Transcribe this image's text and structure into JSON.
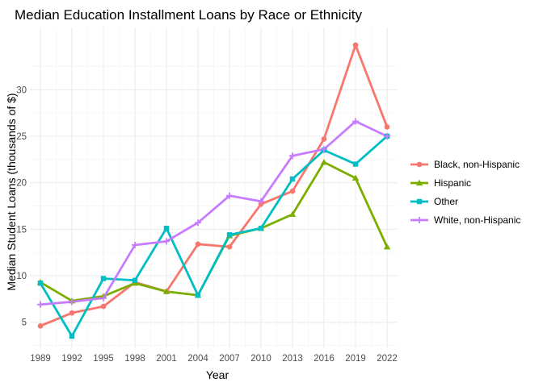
{
  "chart_data": {
    "type": "line",
    "title": "Median Education Installment Loans by Race or Ethnicity",
    "xlabel": "Year",
    "ylabel": "Median Student Loans (thousands of $)",
    "x": [
      1989,
      1992,
      1995,
      1998,
      2001,
      2004,
      2007,
      2010,
      2013,
      2016,
      2019,
      2022
    ],
    "xlim": [
      1988,
      2023
    ],
    "ylim": [
      2.2,
      36.7
    ],
    "yticks": [
      5,
      10,
      15,
      20,
      25,
      30
    ],
    "grid": true,
    "legend_position": "right",
    "series": [
      {
        "name": "Black, non-Hispanic",
        "color": "#F8766D",
        "marker": "circle",
        "values": [
          4.6,
          6.0,
          6.7,
          9.3,
          8.3,
          13.4,
          13.1,
          17.7,
          19.1,
          24.7,
          34.8,
          26.0
        ]
      },
      {
        "name": "Hispanic",
        "color": "#7CAE00",
        "marker": "triangle",
        "values": [
          9.3,
          7.3,
          7.8,
          9.2,
          8.3,
          7.9,
          14.3,
          15.1,
          16.6,
          22.2,
          20.5,
          13.1
        ]
      },
      {
        "name": "Other",
        "color": "#00BFC4",
        "marker": "square",
        "values": [
          9.2,
          3.5,
          9.7,
          9.5,
          15.1,
          7.9,
          14.4,
          15.1,
          20.4,
          23.5,
          22.0,
          25.0
        ]
      },
      {
        "name": "White, non-Hispanic",
        "color": "#C77CFF",
        "marker": "plus",
        "values": [
          6.9,
          7.2,
          7.6,
          13.3,
          13.7,
          15.7,
          18.6,
          18.0,
          22.9,
          23.6,
          26.6,
          25.0
        ]
      }
    ]
  }
}
